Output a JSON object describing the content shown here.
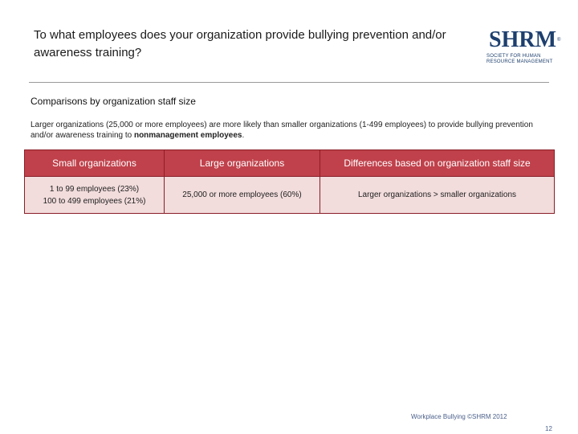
{
  "title": "To what employees does your organization provide bullying prevention and/or awareness training?",
  "logo": {
    "word": "SHRM",
    "registered": "®",
    "line1": "SOCIETY FOR HUMAN",
    "line2": "RESOURCE MANAGEMENT"
  },
  "subtitle": "Comparisons by organization staff size",
  "description": {
    "pre": "Larger organizations (25,000  or more employees) are more likely than smaller organizations (1-499 employees) to provide bullying prevention and/or awareness training to ",
    "emphasis": "nonmanagement employees",
    "post": "."
  },
  "table": {
    "headers": [
      "Small organizations",
      "Large organizations",
      "Differences based on organization staff size"
    ],
    "small": [
      "1 to 99 employees (23%)",
      "100 to 499 employees (21%)"
    ],
    "large": "25,000 or more employees (60%)",
    "difference": "Larger organizations > smaller organizations"
  },
  "footer": "Workplace Bullying ©SHRM 2012",
  "page_number": "12"
}
